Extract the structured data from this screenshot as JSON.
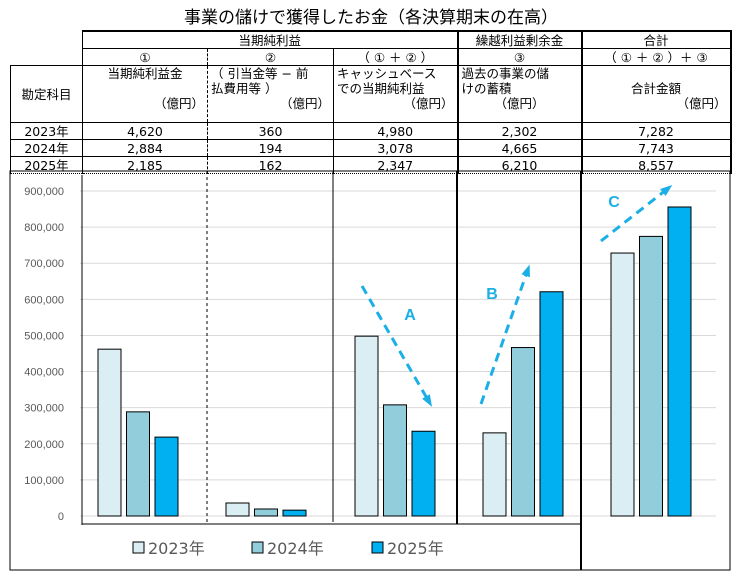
{
  "title": "事業の儲けで獲得したお金（各決算期末の在高）",
  "table": {
    "group_headers": [
      "当期純利益",
      "繰越利益剰余金",
      "合計"
    ],
    "sub_headers": [
      "①",
      "②",
      "（ ① ＋ ② ）",
      "③",
      "（ ① ＋ ② ）＋ ③"
    ],
    "row_label_header": "勘定科目",
    "col_headers": [
      {
        "line1": "当期純利益金",
        "line2": "",
        "unit": "（億円）"
      },
      {
        "line1": "（ 引当金等 − 前",
        "line2": "払費用等 ）",
        "unit": "（億円）"
      },
      {
        "line1": "キャッシュベース",
        "line2": "での当期純利益",
        "unit": "（億円）"
      },
      {
        "line1": "過去の事業の儲",
        "line2": "けの蓄積",
        "unit": "（億円）"
      },
      {
        "line1": "",
        "line2": "合計金額",
        "unit": "（億円）"
      }
    ],
    "rows": [
      {
        "label": "2023年",
        "values": [
          "4,620",
          "360",
          "4,980",
          "2,302",
          "7,282"
        ]
      },
      {
        "label": "2024年",
        "values": [
          "2,884",
          "194",
          "3,078",
          "4,665",
          "7,743"
        ]
      },
      {
        "label": "2025年",
        "values": [
          "2,185",
          "162",
          "2,347",
          "6,210",
          "8,557"
        ]
      }
    ]
  },
  "chart_data": {
    "type": "bar",
    "categories": [
      "①",
      "②",
      "①+②",
      "③",
      "(①+②)+③"
    ],
    "series": [
      {
        "name": "2023年",
        "color": "#DAEEF3",
        "values": [
          462000,
          36000,
          498000,
          230200,
          728200
        ]
      },
      {
        "name": "2024年",
        "color": "#92CDDC",
        "values": [
          288400,
          19400,
          307800,
          466500,
          774300
        ]
      },
      {
        "name": "2025年",
        "color": "#00B0F0",
        "values": [
          218500,
          16200,
          234700,
          621000,
          855700
        ]
      }
    ],
    "ylim": [
      0,
      900000
    ],
    "yticks": [
      "0",
      "100,000",
      "200,000",
      "300,000",
      "400,000",
      "500,000",
      "600,000",
      "700,000",
      "800,000",
      "900,000"
    ],
    "legend_position": "bottom",
    "annotations": [
      "A",
      "B",
      "C"
    ],
    "arrow_color": "#1AAFE6"
  }
}
